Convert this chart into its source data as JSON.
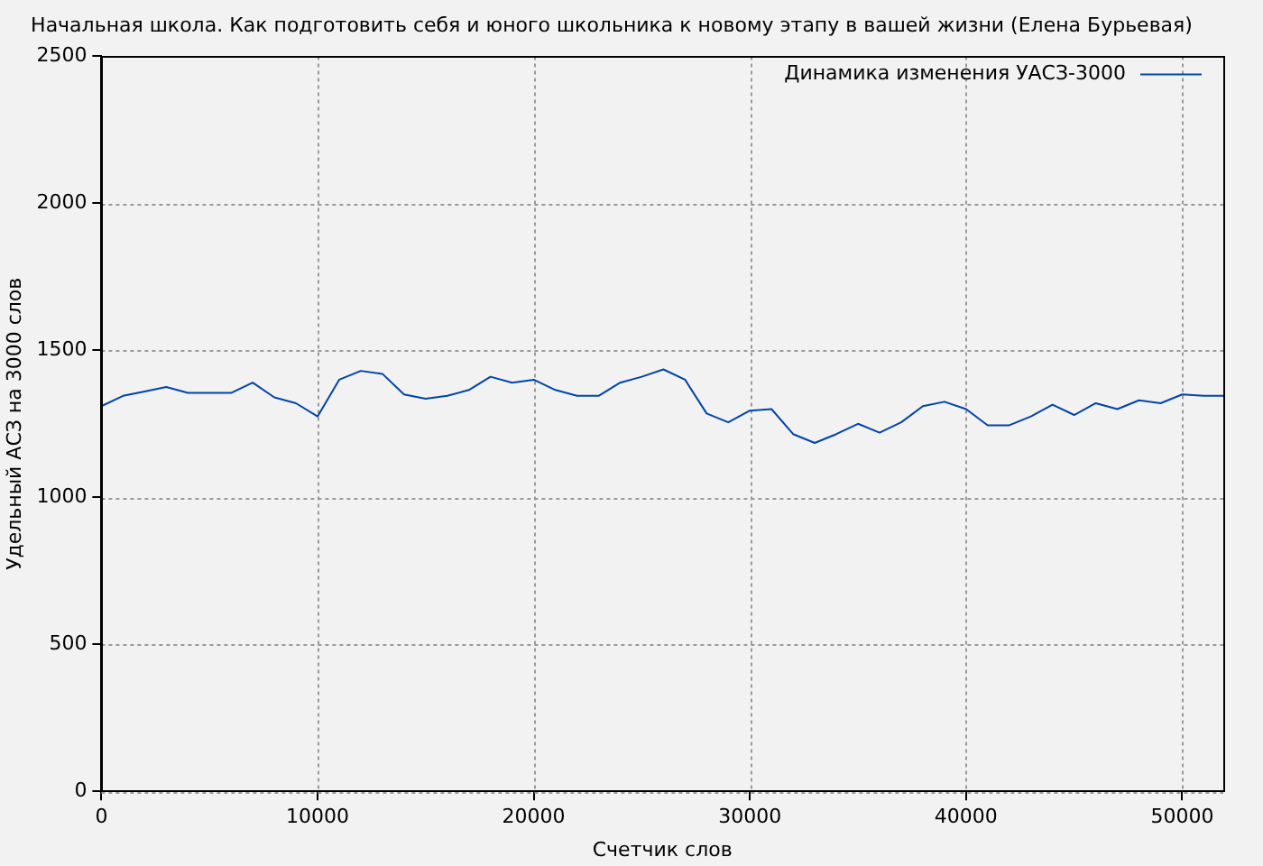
{
  "chart_data": {
    "type": "line",
    "title": "Начальная школа. Как подготовить себя и юного школьника к новому этапу в вашей жизни (Елена Бурьевая)",
    "xlabel": "Счетчик слов",
    "ylabel": "Удельный АСЗ на 3000 слов",
    "x": [
      0,
      1000,
      2000,
      3000,
      4000,
      5000,
      6000,
      7000,
      8000,
      9000,
      10000,
      11000,
      12000,
      13000,
      14000,
      15000,
      16000,
      17000,
      18000,
      19000,
      20000,
      21000,
      22000,
      23000,
      24000,
      25000,
      26000,
      27000,
      28000,
      29000,
      30000,
      31000,
      32000,
      33000,
      34000,
      35000,
      36000,
      37000,
      38000,
      39000,
      40000,
      41000,
      42000,
      43000,
      44000,
      45000,
      46000,
      47000,
      48000,
      49000,
      50000,
      51000,
      51900
    ],
    "series": [
      {
        "name": "Динамика изменения УАСЗ-3000",
        "color": "#0044aa",
        "values": [
          1310,
          1345,
          1360,
          1375,
          1355,
          1355,
          1355,
          1390,
          1340,
          1320,
          1275,
          1400,
          1430,
          1420,
          1350,
          1335,
          1345,
          1365,
          1410,
          1390,
          1400,
          1365,
          1345,
          1345,
          1390,
          1410,
          1435,
          1400,
          1285,
          1255,
          1295,
          1300,
          1215,
          1185,
          1215,
          1250,
          1220,
          1255,
          1310,
          1325,
          1300,
          1245,
          1245,
          1275,
          1315,
          1280,
          1320,
          1300,
          1330,
          1320,
          1350,
          1345,
          1345
        ]
      }
    ],
    "xlim": [
      0,
      51900
    ],
    "xticks": [
      0,
      10000,
      20000,
      30000,
      40000,
      50000
    ],
    "ylim": [
      0,
      2500
    ],
    "yticks": [
      0,
      500,
      1000,
      1500,
      2000,
      2500
    ],
    "grid": true,
    "legend": "top right",
    "marker": "none",
    "line_style": "solid"
  }
}
